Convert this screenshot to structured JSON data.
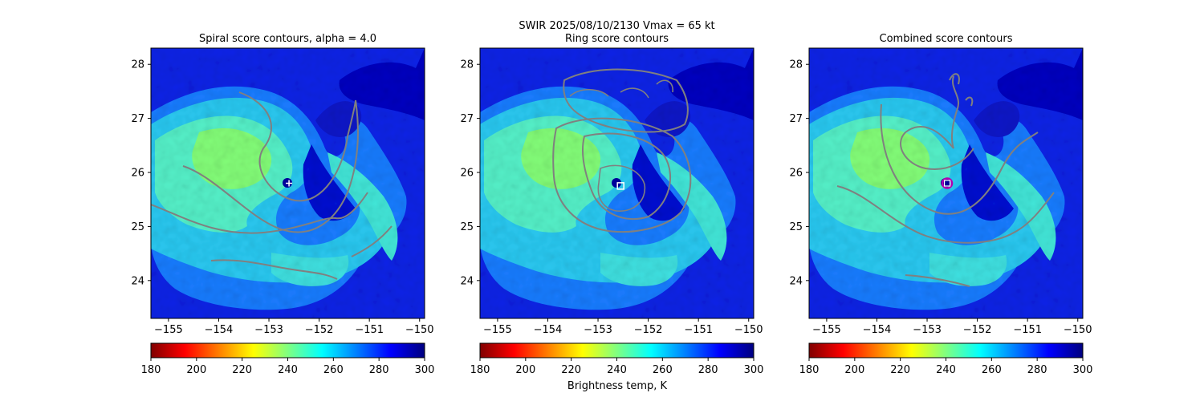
{
  "figure": {
    "suptitle_line1": "SWIR  2025/08/10/2130    Vmax = 65 kt",
    "colorbar_label": "Brightness temp, K"
  },
  "colors": {
    "contour": "#808080",
    "spiral_marker": "#ffffff",
    "ring_marker": "#ffffff",
    "combined_circle": "#b000b0"
  },
  "chart_data": [
    {
      "type": "heatmap",
      "title": "Spiral score contours, alpha =  4.0",
      "xlim": [
        -155.35,
        -149.9
      ],
      "ylim": [
        23.3,
        28.3
      ],
      "xticks": [
        -155,
        -154,
        -153,
        -152,
        -151,
        -150
      ],
      "yticks": [
        24,
        25,
        26,
        27,
        28
      ],
      "xtick_labels": [
        "−155",
        "−154",
        "−153",
        "−152",
        "−151",
        "−150"
      ],
      "ytick_labels": [
        "24",
        "25",
        "26",
        "27",
        "28"
      ],
      "center_marker": {
        "shape": "plus",
        "lon": -152.6,
        "lat": 25.8
      },
      "colorbar": {
        "range": [
          180,
          300
        ],
        "ticks": [
          180,
          200,
          220,
          240,
          260,
          280,
          300
        ],
        "colormap": "jet_r"
      }
    },
    {
      "type": "heatmap",
      "title": "Ring score contours",
      "xlim": [
        -155.35,
        -149.9
      ],
      "ylim": [
        23.3,
        28.3
      ],
      "xticks": [
        -155,
        -154,
        -153,
        -152,
        -151,
        -150
      ],
      "yticks": [
        24,
        25,
        26,
        27,
        28
      ],
      "xtick_labels": [
        "−155",
        "−154",
        "−153",
        "−152",
        "−151",
        "−150"
      ],
      "ytick_labels": [
        "24",
        "25",
        "26",
        "27",
        "28"
      ],
      "center_marker": {
        "shape": "square",
        "lon": -152.55,
        "lat": 25.75
      },
      "colorbar": {
        "range": [
          180,
          300
        ],
        "ticks": [
          180,
          200,
          220,
          240,
          260,
          280,
          300
        ],
        "colormap": "jet_r"
      }
    },
    {
      "type": "heatmap",
      "title": "Combined score contours",
      "xlim": [
        -155.35,
        -149.9
      ],
      "ylim": [
        23.3,
        28.3
      ],
      "xticks": [
        -155,
        -154,
        -153,
        -152,
        -151,
        -150
      ],
      "yticks": [
        24,
        25,
        26,
        27,
        28
      ],
      "xtick_labels": [
        "−155",
        "−154",
        "−153",
        "−152",
        "−151",
        "−150"
      ],
      "ytick_labels": [
        "24",
        "25",
        "26",
        "27",
        "28"
      ],
      "center_marker": {
        "shape": "circle",
        "lon": -152.6,
        "lat": 25.8
      },
      "colorbar": {
        "range": [
          180,
          300
        ],
        "ticks": [
          180,
          200,
          220,
          240,
          260,
          280,
          300
        ],
        "colormap": "jet_r"
      }
    }
  ]
}
